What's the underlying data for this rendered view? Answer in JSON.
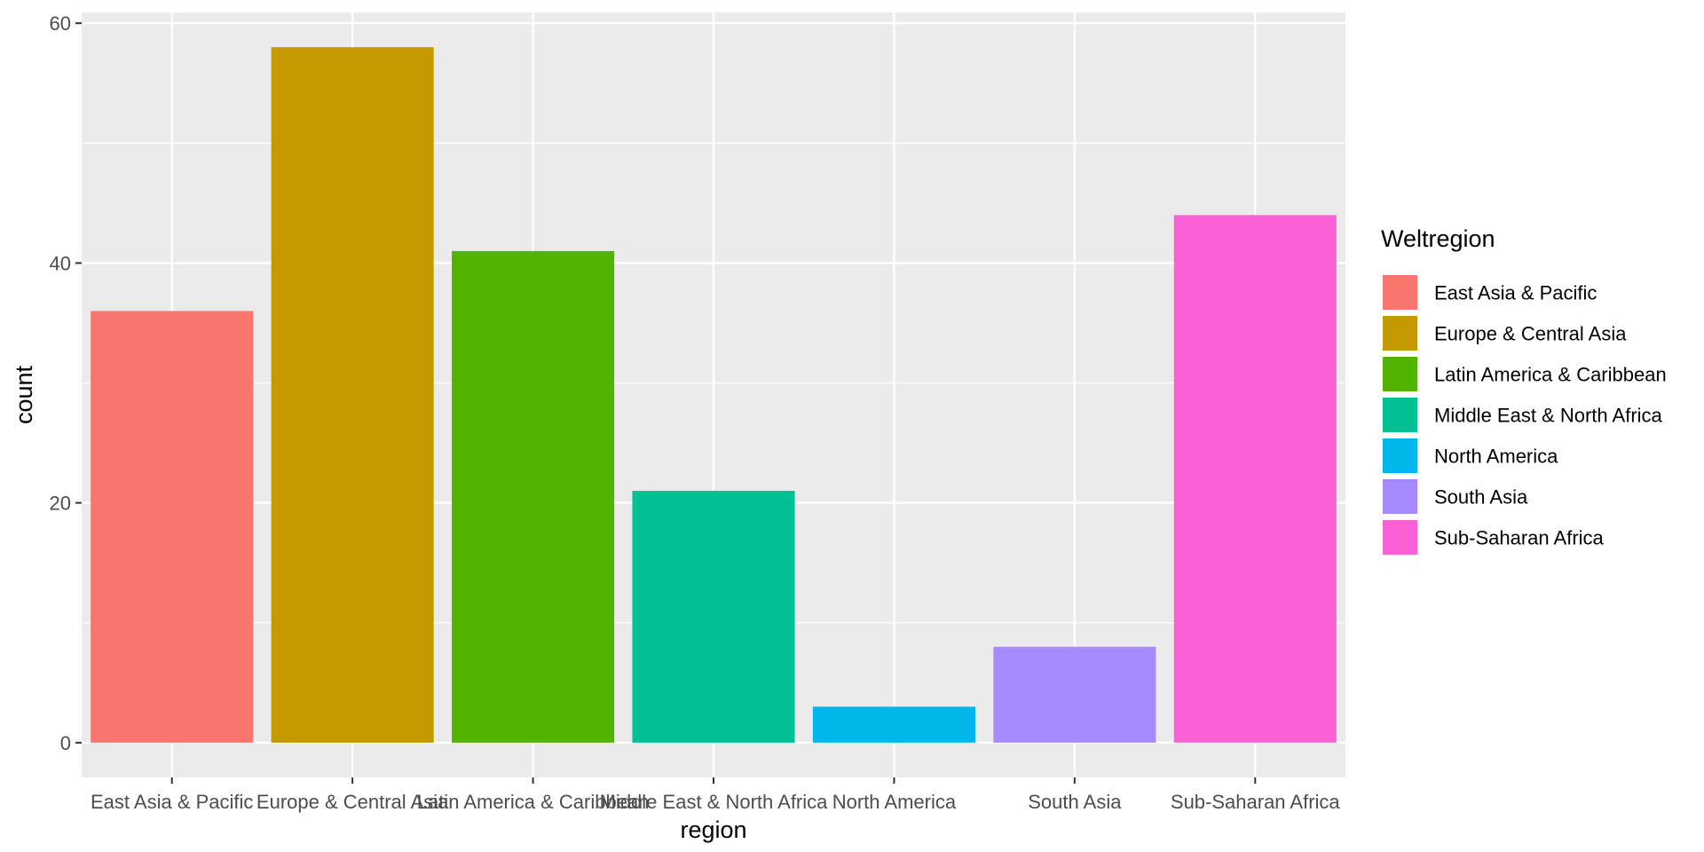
{
  "chart_data": {
    "type": "bar",
    "categories": [
      "East Asia & Pacific",
      "Europe & Central Asia",
      "Latin America & Caribbean",
      "Middle East & North Africa",
      "North America",
      "South Asia",
      "Sub-Saharan Africa"
    ],
    "values": [
      36,
      58,
      41,
      21,
      3,
      8,
      44
    ],
    "colors": [
      "#F8766D",
      "#C49A00",
      "#53B400",
      "#00C094",
      "#00B6EB",
      "#A58AFF",
      "#FB61D7"
    ],
    "xlabel": "region",
    "ylabel": "count",
    "ylim": [
      -2.9,
      60.9
    ],
    "yticks": [
      0,
      20,
      40,
      60
    ],
    "grid": true,
    "panel_background": "#EBEBEB",
    "legend": {
      "title": "Weltregion",
      "position": "right",
      "entries": [
        "East Asia & Pacific",
        "Europe & Central Asia",
        "Latin America & Caribbean",
        "Middle East & North Africa",
        "North America",
        "South Asia",
        "Sub-Saharan Africa"
      ]
    }
  }
}
